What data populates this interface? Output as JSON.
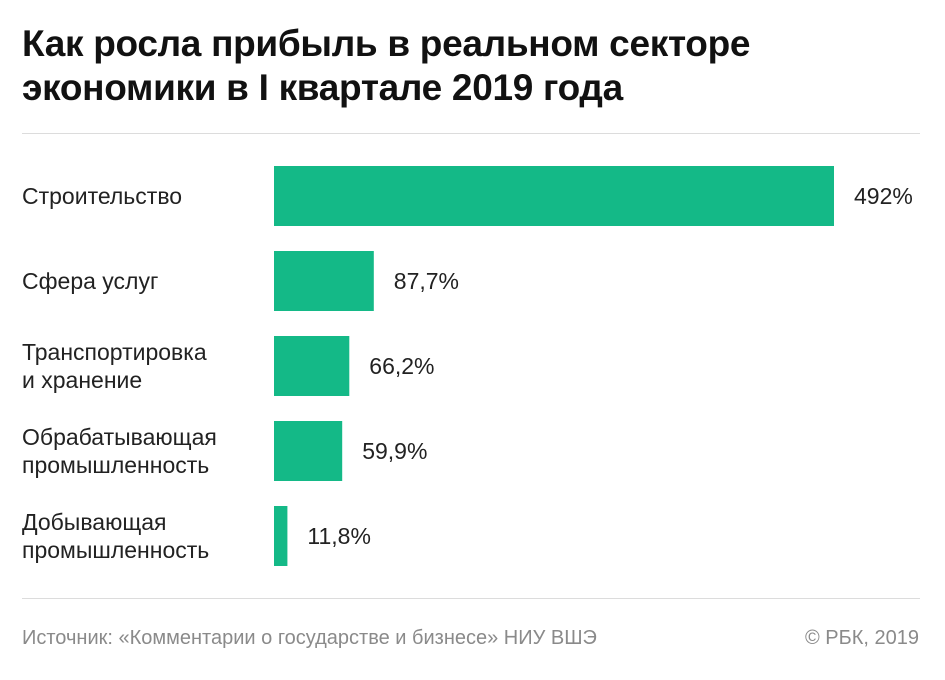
{
  "chart_data": {
    "type": "bar",
    "orientation": "horizontal",
    "title": "Как росла прибыль в реальном  секторе экономики в I квартале 2019 года",
    "categories": [
      [
        "Строительство"
      ],
      [
        "Сфера услуг"
      ],
      [
        "Транспортировка",
        "и хранение"
      ],
      [
        "Обрабатывающая",
        "промышленность"
      ],
      [
        "Добывающая",
        "промышленность"
      ]
    ],
    "values": [
      492,
      87.7,
      66.2,
      59.9,
      11.8
    ],
    "value_labels": [
      "492%",
      "87,7%",
      "66,2%",
      "59,9%",
      "11,8%"
    ],
    "unit": "%",
    "xlim": [
      0,
      492
    ],
    "grid": false,
    "bar_color": "#14b987"
  },
  "footer": {
    "source": "Источник: «Комментарии о государстве и бизнесе» НИУ ВШЭ",
    "copyright": "© РБК, 2019"
  }
}
